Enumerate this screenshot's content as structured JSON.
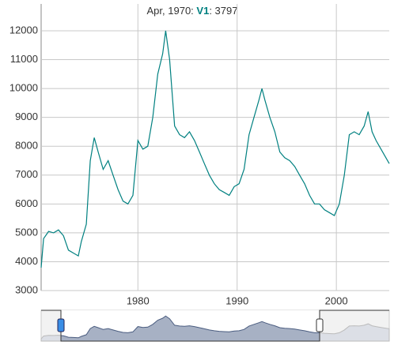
{
  "chart_data": {
    "type": "line",
    "legend": {
      "label": "Apr, 1970",
      "value": 3797
    },
    "x": [
      1970.25,
      1970.5,
      1971,
      1971.5,
      1972,
      1972.5,
      1973,
      1973.5,
      1974,
      1974.3,
      1974.8,
      1975.2,
      1975.6,
      1976,
      1976.5,
      1977,
      1977.5,
      1978,
      1978.5,
      1979,
      1979.5,
      1980,
      1980.5,
      1981,
      1981.5,
      1982,
      1982.5,
      1982.8,
      1983.2,
      1983.7,
      1984.2,
      1984.7,
      1985.2,
      1985.7,
      1986.2,
      1986.7,
      1987.2,
      1987.7,
      1988.2,
      1988.7,
      1989.2,
      1989.7,
      1990.2,
      1990.7,
      1991.2,
      1991.7,
      1992.2,
      1992.5,
      1992.8,
      1993.3,
      1993.8,
      1994.3,
      1994.8,
      1995.3,
      1995.8,
      1996.3,
      1996.8,
      1997.3,
      1997.8,
      1998.3,
      1998.8,
      1999.3,
      1999.8,
      2000.3,
      2000.8,
      2001.3,
      2001.8,
      2002.3,
      2002.8,
      2003.2,
      2003.6,
      2004,
      2004.5,
      2005.33
    ],
    "series": [
      {
        "name": "V1",
        "color": "#008080",
        "values": [
          3797,
          4800,
          5050,
          5000,
          5100,
          4900,
          4400,
          4300,
          4200,
          4700,
          5300,
          7500,
          8300,
          7800,
          7200,
          7500,
          7000,
          6500,
          6100,
          6000,
          6300,
          8200,
          7900,
          8000,
          9000,
          10500,
          11200,
          12000,
          11000,
          8700,
          8400,
          8300,
          8500,
          8200,
          7800,
          7400,
          7000,
          6700,
          6500,
          6400,
          6300,
          6600,
          6700,
          7200,
          8400,
          9000,
          9600,
          10000,
          9600,
          9000,
          8500,
          7800,
          7600,
          7500,
          7300,
          7000,
          6700,
          6300,
          6000,
          6000,
          5800,
          5700,
          5600,
          6000,
          7000,
          8400,
          8500,
          8400,
          8700,
          9200,
          8500,
          8200,
          7900,
          7400
        ]
      }
    ],
    "xlim": [
      1970.25,
      2005.33
    ],
    "xticks": [
      1980,
      1990,
      2000
    ],
    "ylim": [
      3000,
      12930
    ],
    "yticks": [
      3000,
      4000,
      5000,
      6000,
      7000,
      8000,
      9000,
      10000,
      11000,
      12000
    ],
    "grid": true
  }
}
